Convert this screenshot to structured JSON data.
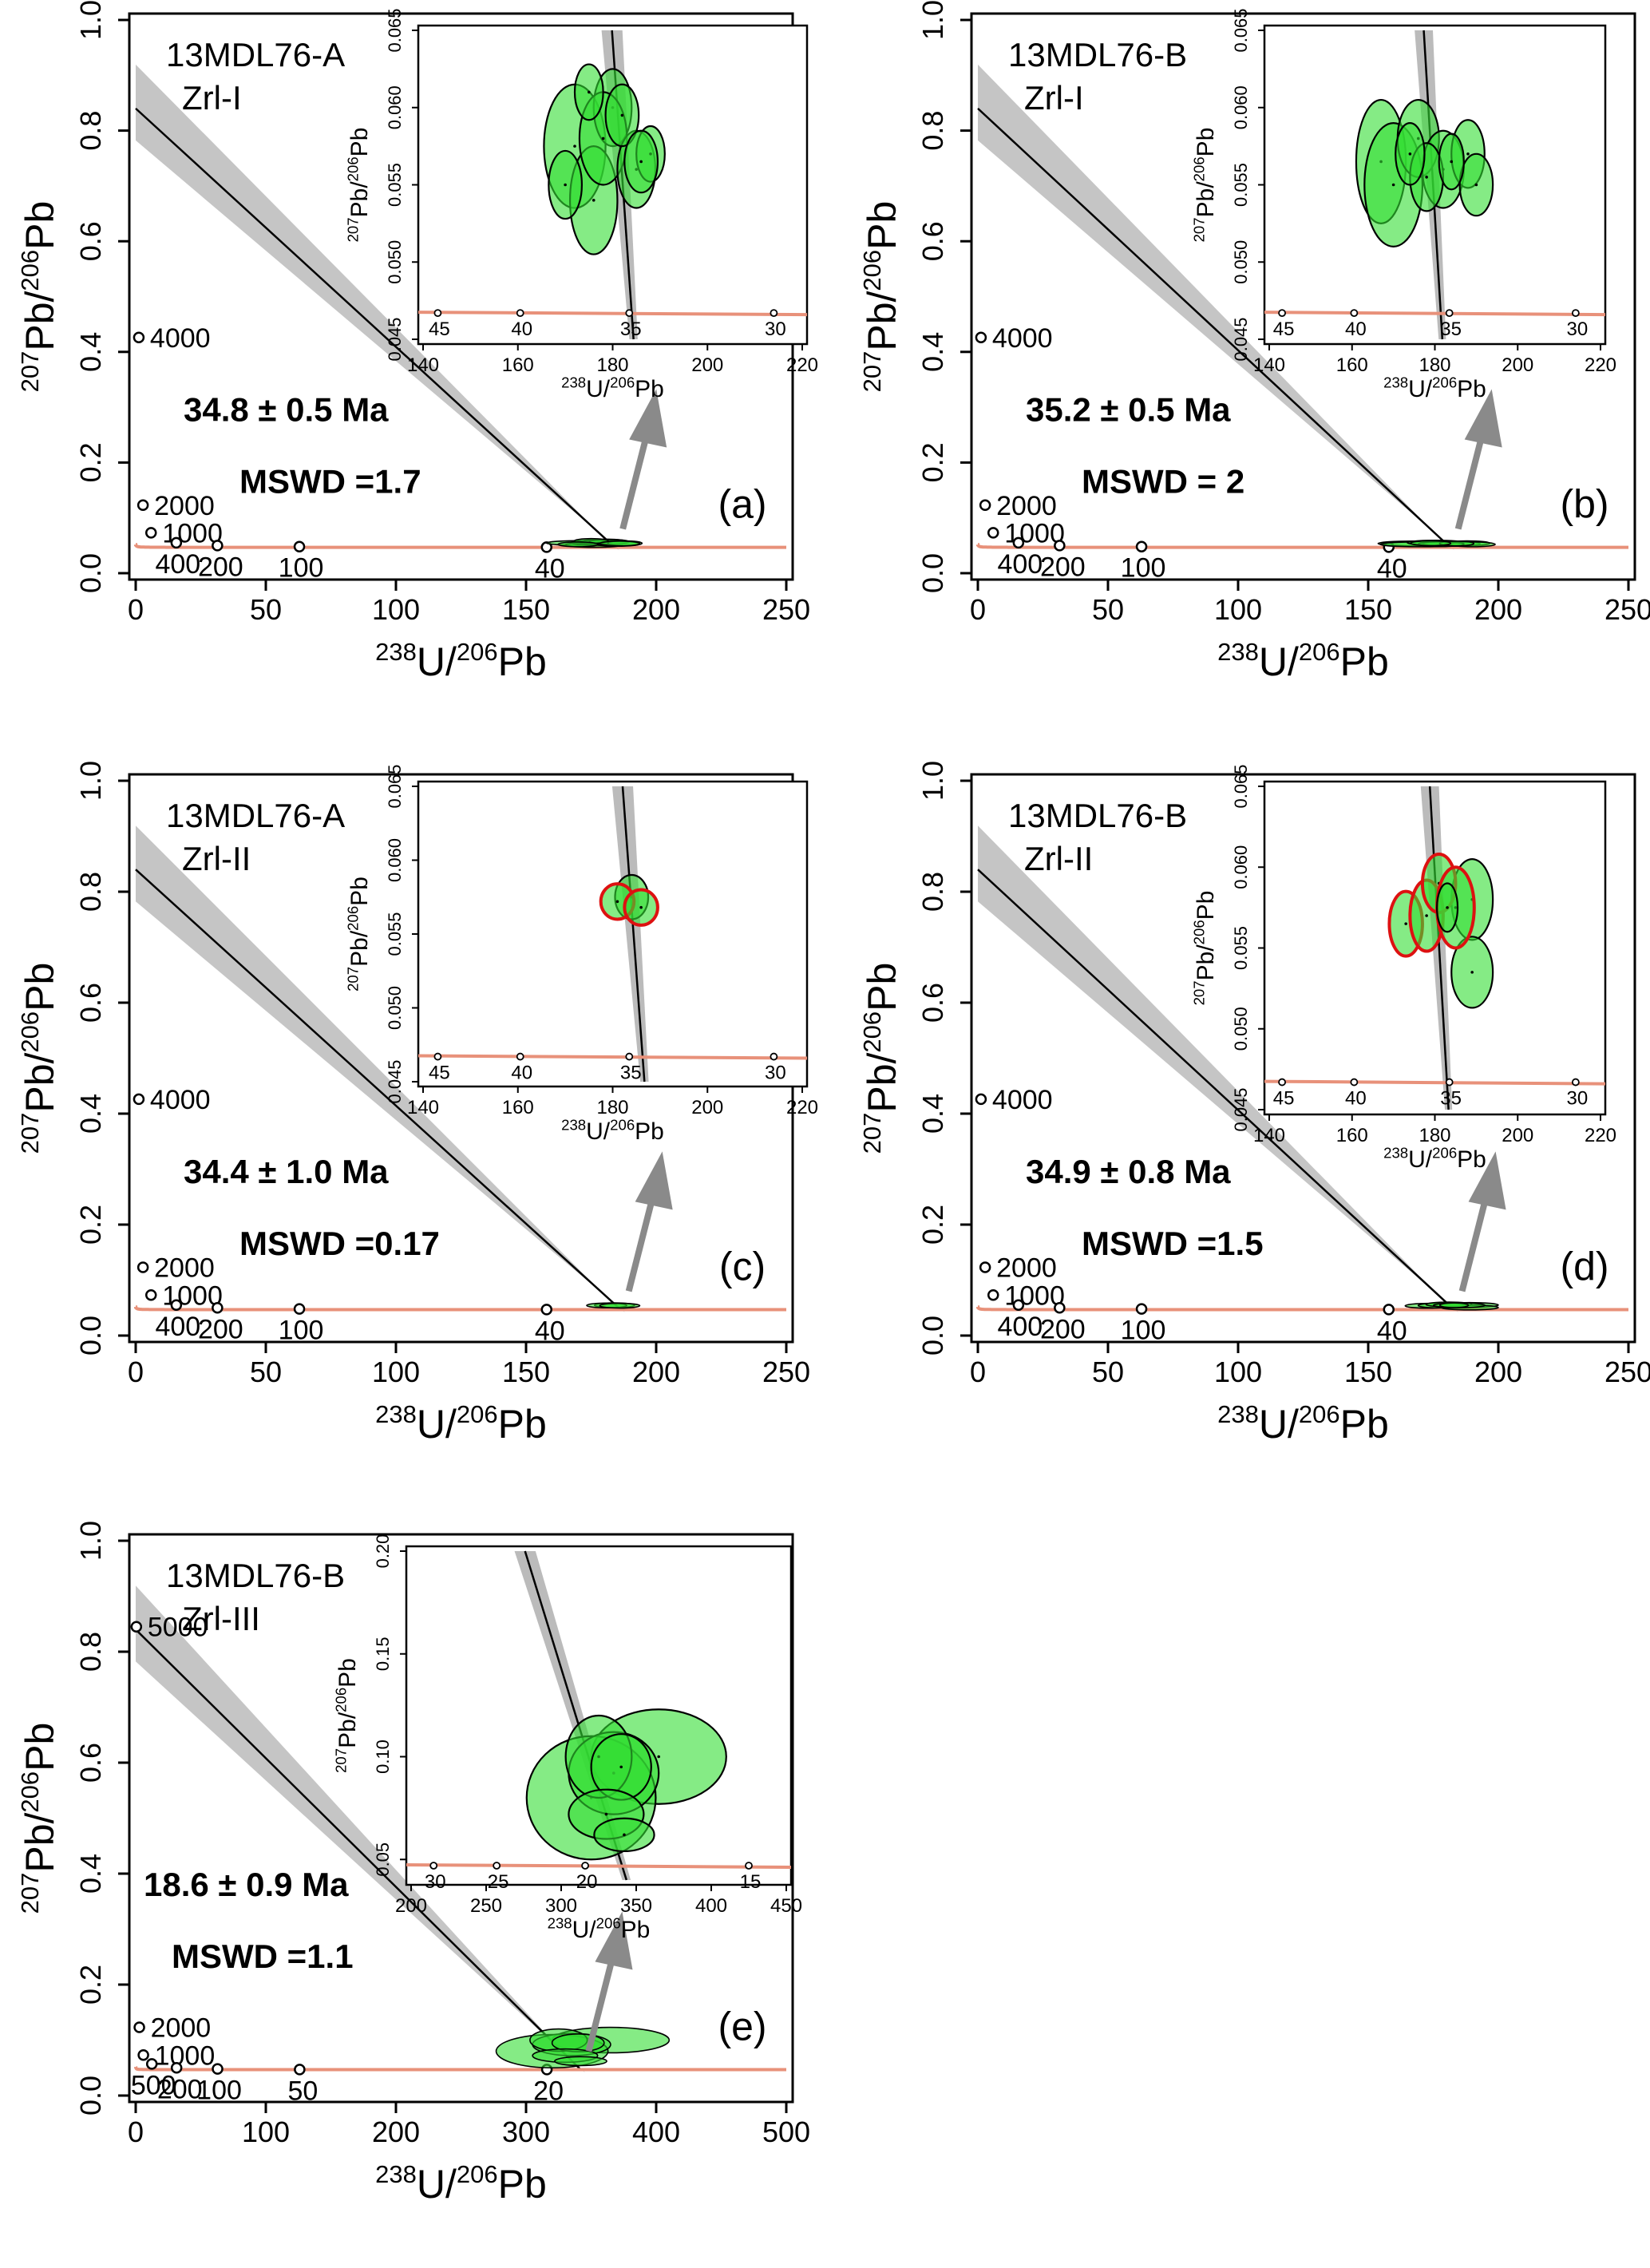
{
  "figure": {
    "style": {
      "concordia_color": "#e8917a",
      "fill_green": "#33dd33",
      "fill_green_opacity": 0.6,
      "outline_red": "#dd1111",
      "band_gray": "#bbbbbb",
      "arrow_gray": "#8a8a8a"
    }
  },
  "chart_data": [
    {
      "type": "scatter",
      "panel": "(a)",
      "sample": "13MDL76-A",
      "group": "Zrl-I",
      "age_label": "34.8 ± 0.5 Ma",
      "mswd_label": "MSWD =1.7",
      "xlabel_iso": "238",
      "xlabel_pre": "U/",
      "xlabel_iso2": "206",
      "xlabel_post": "Pb",
      "ylabel_iso": "207",
      "ylabel_pre": "Pb/",
      "ylabel_iso2": "206",
      "ylabel_post": "Pb",
      "xlim": [
        0,
        250
      ],
      "ylim": [
        0,
        1.0
      ],
      "xticks": [
        0,
        50,
        100,
        150,
        200,
        250
      ],
      "yticks": [
        0.0,
        0.2,
        0.4,
        0.6,
        0.8,
        1.0
      ],
      "concordia_ages": [
        {
          "label": "4000",
          "x": 1.2,
          "y": 0.426
        },
        {
          "label": "2000",
          "x": 2.8,
          "y": 0.123
        },
        {
          "label": "1000",
          "x": 5.9,
          "y": 0.073
        },
        {
          "label": "400",
          "x": 15.6,
          "y": 0.055
        },
        {
          "label": "200",
          "x": 31.4,
          "y": 0.05
        },
        {
          "label": "100",
          "x": 62.9,
          "y": 0.048
        },
        {
          "label": "40",
          "x": 157.9,
          "y": 0.047
        }
      ],
      "discordia": {
        "intercept_y": 0.84,
        "intercept_x": 184.1
      },
      "inset": {
        "xlim": [
          140,
          220
        ],
        "ylim": [
          0.045,
          0.065
        ],
        "xticks": [
          140,
          160,
          180,
          200,
          220
        ],
        "yticks": [
          0.045,
          0.05,
          0.055,
          0.06,
          0.065
        ],
        "concordia_ages": [
          {
            "label": "45",
            "x": 143.1
          },
          {
            "label": "40",
            "x": 160.5
          },
          {
            "label": "35",
            "x": 183.5
          },
          {
            "label": "30",
            "x": 214.0
          }
        ],
        "ellipses": [
          {
            "x": 172,
            "y": 0.0575,
            "rx": 6.5,
            "ry": 0.004,
            "color": "green"
          },
          {
            "x": 176,
            "y": 0.054,
            "rx": 5,
            "ry": 0.0035,
            "color": "green"
          },
          {
            "x": 180,
            "y": 0.06,
            "rx": 4,
            "ry": 0.0025,
            "color": "green"
          },
          {
            "x": 178,
            "y": 0.058,
            "rx": 5,
            "ry": 0.003,
            "color": "green"
          },
          {
            "x": 185,
            "y": 0.056,
            "rx": 4,
            "ry": 0.0025,
            "color": "green"
          },
          {
            "x": 182,
            "y": 0.0595,
            "rx": 3.5,
            "ry": 0.002,
            "color": "green"
          },
          {
            "x": 188,
            "y": 0.057,
            "rx": 3,
            "ry": 0.0018,
            "color": "green"
          },
          {
            "x": 175,
            "y": 0.061,
            "rx": 3,
            "ry": 0.0018,
            "color": "green"
          },
          {
            "x": 170,
            "y": 0.055,
            "rx": 3.5,
            "ry": 0.0022,
            "color": "green"
          },
          {
            "x": 186,
            "y": 0.0565,
            "rx": 3.5,
            "ry": 0.002,
            "color": "green"
          }
        ]
      }
    },
    {
      "type": "scatter",
      "panel": "(b)",
      "sample": "13MDL76-B",
      "group": "Zrl-I",
      "age_label": "35.2 ± 0.5 Ma",
      "mswd_label": "MSWD = 2",
      "xlabel_iso": "238",
      "xlabel_pre": "U/",
      "xlabel_iso2": "206",
      "xlabel_post": "Pb",
      "ylabel_iso": "207",
      "ylabel_pre": "Pb/",
      "ylabel_iso2": "206",
      "ylabel_post": "Pb",
      "xlim": [
        0,
        250
      ],
      "ylim": [
        0,
        1.0
      ],
      "xticks": [
        0,
        50,
        100,
        150,
        200,
        250
      ],
      "yticks": [
        0.0,
        0.2,
        0.4,
        0.6,
        0.8,
        1.0
      ],
      "concordia_ages": [
        {
          "label": "4000",
          "x": 1.2,
          "y": 0.426
        },
        {
          "label": "2000",
          "x": 2.8,
          "y": 0.123
        },
        {
          "label": "1000",
          "x": 5.9,
          "y": 0.073
        },
        {
          "label": "400",
          "x": 15.6,
          "y": 0.055
        },
        {
          "label": "200",
          "x": 31.4,
          "y": 0.05
        },
        {
          "label": "100",
          "x": 62.9,
          "y": 0.048
        },
        {
          "label": "40",
          "x": 157.9,
          "y": 0.047
        }
      ],
      "discordia": {
        "intercept_y": 0.84,
        "intercept_x": 181.5
      },
      "inset": {
        "xlim": [
          140,
          220
        ],
        "ylim": [
          0.045,
          0.065
        ],
        "xticks": [
          140,
          160,
          180,
          200,
          220
        ],
        "yticks": [
          0.045,
          0.05,
          0.055,
          0.06,
          0.065
        ],
        "concordia_ages": [
          {
            "label": "45",
            "x": 143.1
          },
          {
            "label": "40",
            "x": 160.5
          },
          {
            "label": "35",
            "x": 183.5
          },
          {
            "label": "30",
            "x": 214.0
          }
        ],
        "ellipses": [
          {
            "x": 167,
            "y": 0.0565,
            "rx": 6,
            "ry": 0.004,
            "color": "green"
          },
          {
            "x": 170,
            "y": 0.055,
            "rx": 7,
            "ry": 0.004,
            "color": "green"
          },
          {
            "x": 176,
            "y": 0.058,
            "rx": 5,
            "ry": 0.0025,
            "color": "green"
          },
          {
            "x": 182,
            "y": 0.056,
            "rx": 5,
            "ry": 0.0025,
            "color": "green"
          },
          {
            "x": 188,
            "y": 0.057,
            "rx": 4,
            "ry": 0.0022,
            "color": "green"
          },
          {
            "x": 190,
            "y": 0.055,
            "rx": 4,
            "ry": 0.002,
            "color": "green"
          },
          {
            "x": 178,
            "y": 0.0555,
            "rx": 4,
            "ry": 0.0022,
            "color": "green"
          },
          {
            "x": 184,
            "y": 0.0565,
            "rx": 3,
            "ry": 0.0018,
            "color": "green"
          },
          {
            "x": 174,
            "y": 0.057,
            "rx": 3.5,
            "ry": 0.002,
            "color": "green"
          }
        ]
      }
    },
    {
      "type": "scatter",
      "panel": "(c)",
      "sample": "13MDL76-A",
      "group": "Zrl-II",
      "age_label": "34.4 ± 1.0 Ma",
      "mswd_label": "MSWD =0.17",
      "xlabel_iso": "238",
      "xlabel_pre": "U/",
      "xlabel_iso2": "206",
      "xlabel_post": "Pb",
      "ylabel_iso": "207",
      "ylabel_pre": "Pb/",
      "ylabel_iso2": "206",
      "ylabel_post": "Pb",
      "xlim": [
        0,
        250
      ],
      "ylim": [
        0,
        1.0
      ],
      "xticks": [
        0,
        50,
        100,
        150,
        200,
        250
      ],
      "yticks": [
        0.0,
        0.2,
        0.4,
        0.6,
        0.8,
        1.0
      ],
      "concordia_ages": [
        {
          "label": "4000",
          "x": 1.2,
          "y": 0.426
        },
        {
          "label": "2000",
          "x": 2.8,
          "y": 0.123
        },
        {
          "label": "1000",
          "x": 5.9,
          "y": 0.073
        },
        {
          "label": "400",
          "x": 15.6,
          "y": 0.055
        },
        {
          "label": "200",
          "x": 31.4,
          "y": 0.05
        },
        {
          "label": "100",
          "x": 62.9,
          "y": 0.048
        },
        {
          "label": "40",
          "x": 157.9,
          "y": 0.047
        }
      ],
      "discordia": {
        "intercept_y": 0.84,
        "intercept_x": 186.4
      },
      "inset": {
        "xlim": [
          140,
          220
        ],
        "ylim": [
          0.045,
          0.065
        ],
        "xticks": [
          140,
          160,
          180,
          200,
          220
        ],
        "yticks": [
          0.045,
          0.05,
          0.055,
          0.06,
          0.065
        ],
        "concordia_ages": [
          {
            "label": "45",
            "x": 143.1
          },
          {
            "label": "40",
            "x": 160.5
          },
          {
            "label": "35",
            "x": 183.5
          },
          {
            "label": "30",
            "x": 214.0
          }
        ],
        "ellipses": [
          {
            "x": 184,
            "y": 0.0575,
            "rx": 3.5,
            "ry": 0.0015,
            "color": "green"
          },
          {
            "x": 181,
            "y": 0.0572,
            "rx": 3.5,
            "ry": 0.0012,
            "color": "red"
          },
          {
            "x": 186,
            "y": 0.0568,
            "rx": 3.5,
            "ry": 0.0012,
            "color": "red"
          }
        ]
      }
    },
    {
      "type": "scatter",
      "panel": "(d)",
      "sample": "13MDL76-B",
      "group": "Zrl-II",
      "age_label": "34.9 ± 0.8 Ma",
      "mswd_label": "MSWD =1.5",
      "xlabel_iso": "238",
      "xlabel_pre": "U/",
      "xlabel_iso2": "206",
      "xlabel_post": "Pb",
      "ylabel_iso": "207",
      "ylabel_pre": "Pb/",
      "ylabel_iso2": "206",
      "ylabel_post": "Pb",
      "xlim": [
        0,
        250
      ],
      "ylim": [
        0,
        1.0
      ],
      "xticks": [
        0,
        50,
        100,
        150,
        200,
        250
      ],
      "yticks": [
        0.0,
        0.2,
        0.4,
        0.6,
        0.8,
        1.0
      ],
      "concordia_ages": [
        {
          "label": "4000",
          "x": 1.2,
          "y": 0.426
        },
        {
          "label": "2000",
          "x": 2.8,
          "y": 0.123
        },
        {
          "label": "1000",
          "x": 5.9,
          "y": 0.073
        },
        {
          "label": "400",
          "x": 15.6,
          "y": 0.055
        },
        {
          "label": "200",
          "x": 31.4,
          "y": 0.05
        },
        {
          "label": "100",
          "x": 62.9,
          "y": 0.048
        },
        {
          "label": "40",
          "x": 157.9,
          "y": 0.047
        }
      ],
      "discordia": {
        "intercept_y": 0.84,
        "intercept_x": 183.0
      },
      "inset": {
        "xlim": [
          140,
          220
        ],
        "ylim": [
          0.045,
          0.065
        ],
        "xticks": [
          140,
          160,
          180,
          200,
          220
        ],
        "yticks": [
          0.045,
          0.05,
          0.055,
          0.06,
          0.065
        ],
        "concordia_ages": [
          {
            "label": "45",
            "x": 143.1
          },
          {
            "label": "40",
            "x": 160.5
          },
          {
            "label": "35",
            "x": 183.5
          },
          {
            "label": "30",
            "x": 214.0
          }
        ],
        "ellipses": [
          {
            "x": 189,
            "y": 0.058,
            "rx": 5,
            "ry": 0.0025,
            "color": "green"
          },
          {
            "x": 189,
            "y": 0.0535,
            "rx": 5,
            "ry": 0.0022,
            "color": "green"
          },
          {
            "x": 173,
            "y": 0.0565,
            "rx": 4,
            "ry": 0.002,
            "color": "red"
          },
          {
            "x": 178,
            "y": 0.057,
            "rx": 4,
            "ry": 0.0022,
            "color": "red"
          },
          {
            "x": 181,
            "y": 0.059,
            "rx": 4,
            "ry": 0.0018,
            "color": "red"
          },
          {
            "x": 185,
            "y": 0.0575,
            "rx": 4.5,
            "ry": 0.0025,
            "color": "red"
          },
          {
            "x": 183,
            "y": 0.0575,
            "rx": 2.5,
            "ry": 0.0015,
            "color": "green"
          }
        ]
      }
    },
    {
      "type": "scatter",
      "panel": "(e)",
      "sample": "13MDL76-B",
      "group": "Zrl-III",
      "age_label": "18.6 ± 0.9 Ma",
      "mswd_label": "MSWD =1.1",
      "xlabel_iso": "238",
      "xlabel_pre": "U/",
      "xlabel_iso2": "206",
      "xlabel_post": "Pb",
      "ylabel_iso": "207",
      "ylabel_pre": "Pb/",
      "ylabel_iso2": "206",
      "ylabel_post": "Pb",
      "xlim": [
        0,
        500
      ],
      "ylim": [
        0,
        1.0
      ],
      "xticks": [
        0,
        100,
        200,
        300,
        400,
        500
      ],
      "yticks": [
        0.0,
        0.2,
        0.4,
        0.6,
        0.8,
        1.0
      ],
      "concordia_ages": [
        {
          "label": "5000",
          "x": 0.5,
          "y": 0.845
        },
        {
          "label": "2000",
          "x": 2.8,
          "y": 0.123
        },
        {
          "label": "1000",
          "x": 5.9,
          "y": 0.073
        },
        {
          "label": "500",
          "x": 12.4,
          "y": 0.057
        },
        {
          "label": "200",
          "x": 31.4,
          "y": 0.05
        },
        {
          "label": "100",
          "x": 62.9,
          "y": 0.048
        },
        {
          "label": "50",
          "x": 126.0,
          "y": 0.047
        },
        {
          "label": "20",
          "x": 316.0,
          "y": 0.047
        }
      ],
      "discordia": {
        "intercept_y": 0.84,
        "intercept_x": 342.0
      },
      "inset": {
        "xlim": [
          200,
          450
        ],
        "ylim": [
          0.04,
          0.2
        ],
        "xticks": [
          200,
          250,
          300,
          350,
          400,
          450
        ],
        "yticks": [
          0.05,
          0.1,
          0.15,
          0.2
        ],
        "concordia_ages": [
          {
            "label": "30",
            "x": 215.0
          },
          {
            "label": "25",
            "x": 257.0
          },
          {
            "label": "20",
            "x": 316.0
          },
          {
            "label": "15",
            "x": 425.0
          }
        ],
        "ellipses": [
          {
            "x": 365,
            "y": 0.1,
            "rx": 45,
            "ry": 0.023,
            "color": "green"
          },
          {
            "x": 320,
            "y": 0.08,
            "rx": 43,
            "ry": 0.03,
            "color": "green"
          },
          {
            "x": 335,
            "y": 0.092,
            "rx": 30,
            "ry": 0.02,
            "color": "green"
          },
          {
            "x": 325,
            "y": 0.1,
            "rx": 22,
            "ry": 0.02,
            "color": "green"
          },
          {
            "x": 340,
            "y": 0.095,
            "rx": 20,
            "ry": 0.016,
            "color": "green"
          },
          {
            "x": 330,
            "y": 0.072,
            "rx": 25,
            "ry": 0.012,
            "color": "green"
          },
          {
            "x": 342,
            "y": 0.062,
            "rx": 20,
            "ry": 0.008,
            "color": "green"
          }
        ]
      }
    }
  ]
}
